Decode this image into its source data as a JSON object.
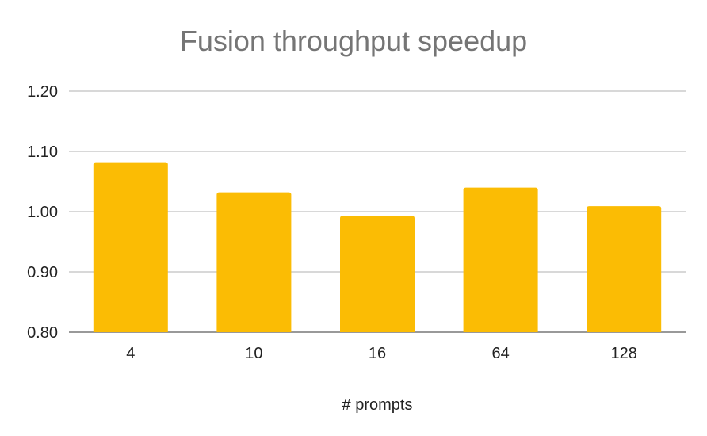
{
  "chart_data": {
    "type": "bar",
    "title": "Fusion throughput speedup",
    "xlabel": "# prompts",
    "ylabel": "",
    "categories": [
      "4",
      "10",
      "16",
      "64",
      "128"
    ],
    "values": [
      1.082,
      1.032,
      0.993,
      1.04,
      1.009
    ],
    "ylim": [
      0.8,
      1.2
    ],
    "yticks": [
      "0.80",
      "0.90",
      "1.00",
      "1.10",
      "1.20"
    ],
    "grid": true,
    "legend": "none",
    "colors": {
      "bar": "#FBBC04",
      "grid": "#CCCCCC",
      "title": "#757575"
    }
  }
}
